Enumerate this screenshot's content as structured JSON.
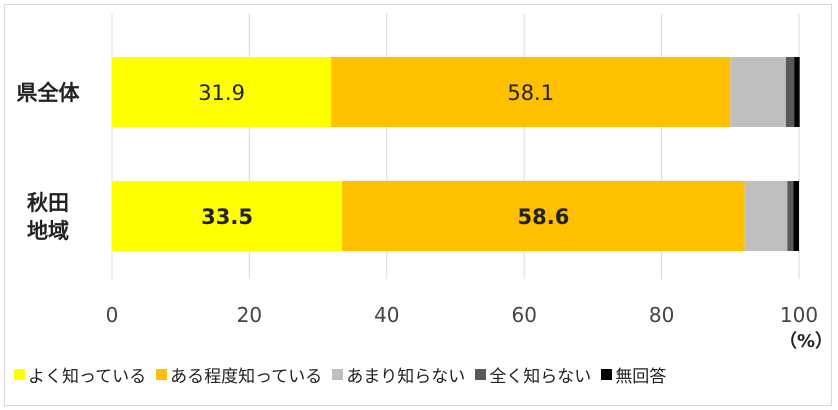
{
  "chart_data": {
    "type": "bar",
    "orientation": "horizontal",
    "stacked": true,
    "categories": [
      "県全体",
      "秋田\n地域"
    ],
    "category_lines": [
      [
        "県全体"
      ],
      [
        "秋田",
        "地域"
      ]
    ],
    "series": [
      {
        "name": "よく知っている",
        "color": "#ffff00",
        "values": [
          31.9,
          33.5
        ],
        "labels": [
          "31.9",
          "33.5"
        ]
      },
      {
        "name": "ある程度知っている",
        "color": "#ffc000",
        "values": [
          58.1,
          58.6
        ],
        "labels": [
          "58.1",
          "58.6"
        ]
      },
      {
        "name": "あまり知らない",
        "color": "#bfbfbf",
        "values": [
          8.1,
          6.2
        ],
        "labels": [
          "",
          ""
        ]
      },
      {
        "name": "全く知らない",
        "color": "#595959",
        "values": [
          1.2,
          0.9
        ],
        "labels": [
          "",
          ""
        ]
      },
      {
        "name": "無回答",
        "color": "#000000",
        "values": [
          0.8,
          0.8
        ],
        "labels": [
          "",
          ""
        ]
      }
    ],
    "bold_labels_category": [
      false,
      true
    ],
    "xlim": [
      0,
      100
    ],
    "xticks": [
      0,
      20,
      40,
      60,
      80,
      100
    ],
    "xunit": "（%）",
    "grid": true,
    "legend": "bottom"
  }
}
